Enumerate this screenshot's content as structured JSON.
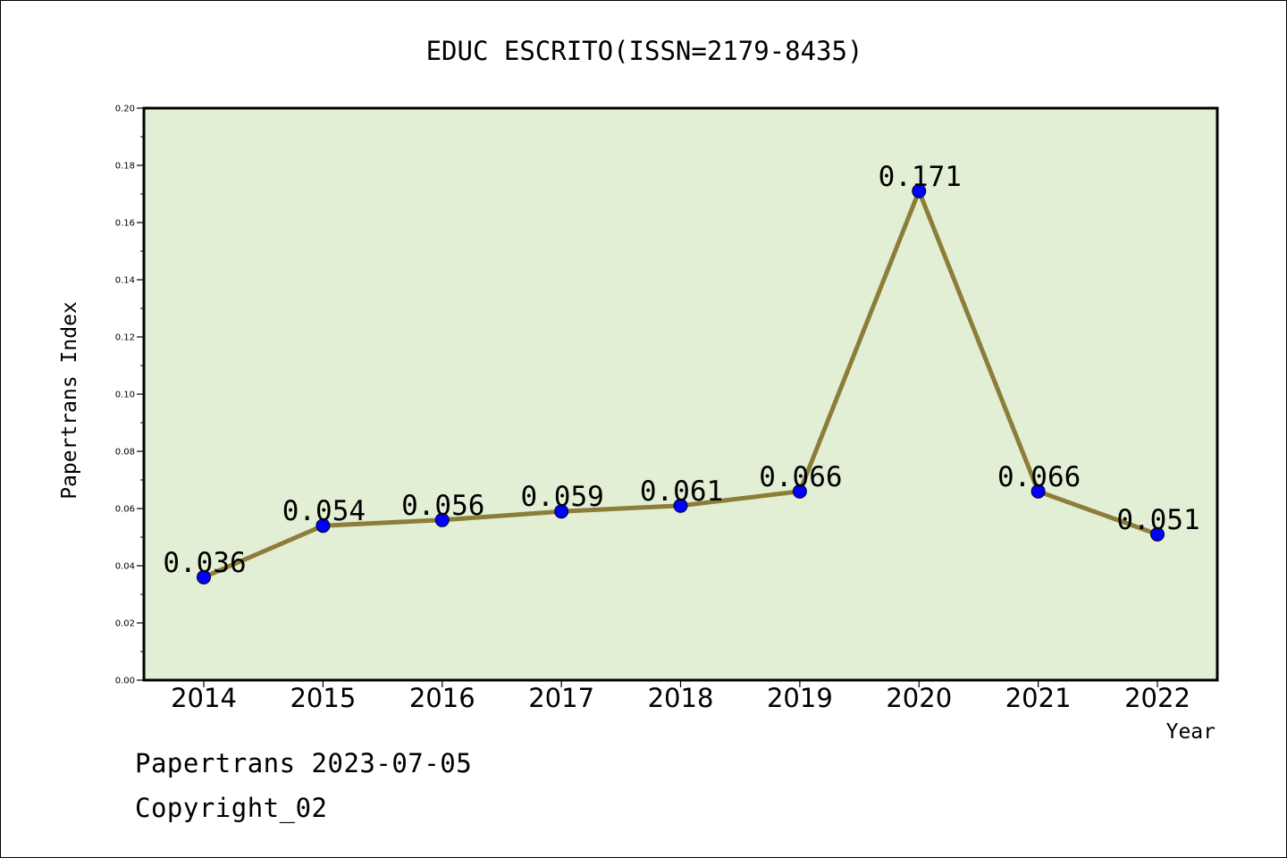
{
  "chart_data": {
    "type": "line",
    "title": "EDUC ESCRITO(ISSN=2179-8435)",
    "xlabel": "Year",
    "ylabel": "Papertrans Index",
    "categories": [
      "2014",
      "2015",
      "2016",
      "2017",
      "2018",
      "2019",
      "2020",
      "2021",
      "2022"
    ],
    "values": [
      0.036,
      0.054,
      0.056,
      0.059,
      0.061,
      0.066,
      0.171,
      0.066,
      0.051
    ],
    "data_labels": [
      "0.036",
      "0.054",
      "0.056",
      "0.059",
      "0.061",
      "0.066",
      "0.171",
      "0.066",
      "0.051"
    ],
    "ylim": [
      0,
      0.2
    ],
    "yticks": [
      "0.00",
      "0.02",
      "0.04",
      "0.06",
      "0.08",
      "0.10",
      "0.12",
      "0.14",
      "0.16",
      "0.18",
      "0.20"
    ],
    "grid": false,
    "legend": "none",
    "colors": {
      "plot_background": "#e2efd5",
      "line": "#8c7d38",
      "marker": "#0000ff"
    }
  },
  "footer": {
    "line1": "Papertrans 2023-07-05",
    "line2": "Copyright_02"
  }
}
